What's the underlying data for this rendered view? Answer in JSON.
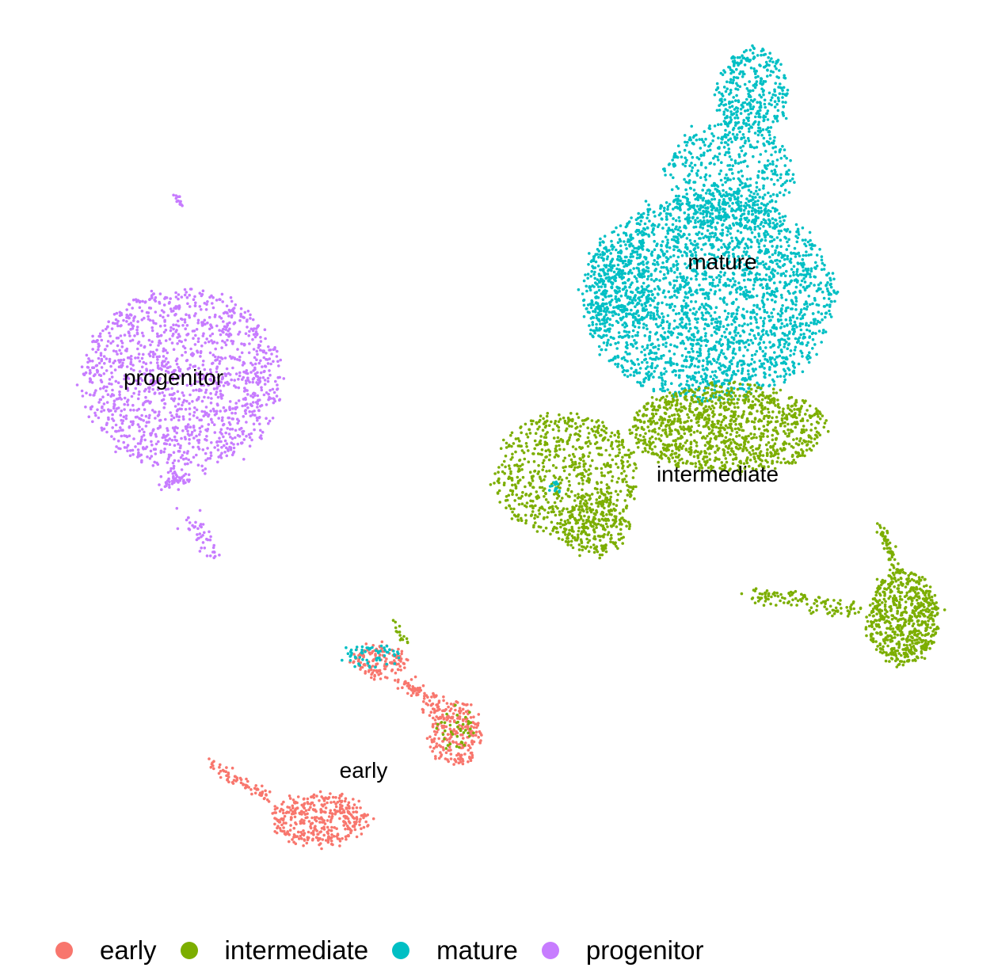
{
  "chart_data": {
    "type": "scatter",
    "title": "",
    "xlabel": "",
    "ylabel": "",
    "grid": false,
    "legend_position": "bottom",
    "series": [
      {
        "name": "early",
        "color": "#F8766D"
      },
      {
        "name": "intermediate",
        "color": "#7CAE00"
      },
      {
        "name": "mature",
        "color": "#00BFC4"
      },
      {
        "name": "progenitor",
        "color": "#C77CFF"
      }
    ],
    "cluster_labels": [
      "early",
      "intermediate",
      "mature",
      "progenitor"
    ]
  }
}
